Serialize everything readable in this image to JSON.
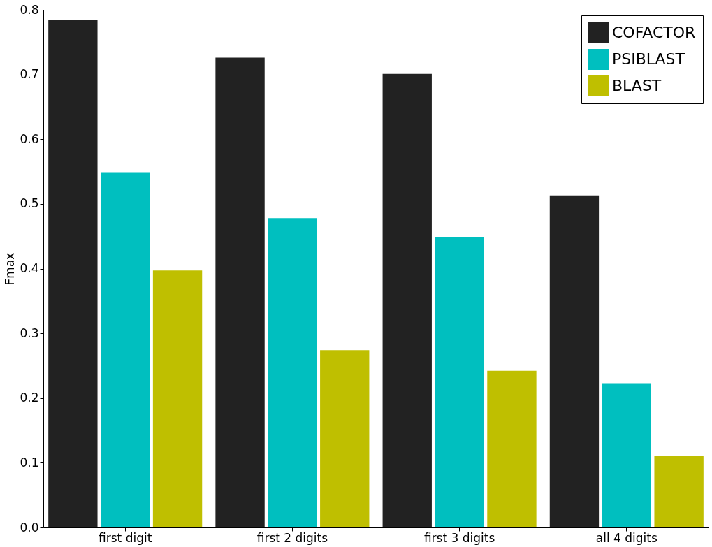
{
  "chart_data": {
    "type": "bar",
    "ylabel": "Fmax",
    "categories": [
      "first digit",
      "first 2 digits",
      "first 3 digits",
      "all 4 digits"
    ],
    "series": [
      {
        "name": "COFACTOR",
        "color": "#222222",
        "values": [
          0.784,
          0.726,
          0.701,
          0.513
        ]
      },
      {
        "name": "PSIBLAST",
        "color": "#00bfbf",
        "values": [
          0.549,
          0.478,
          0.449,
          0.223
        ]
      },
      {
        "name": "BLAST",
        "color": "#bfbf00",
        "values": [
          0.397,
          0.274,
          0.242,
          0.11
        ]
      }
    ],
    "ylim": [
      0.0,
      0.8
    ],
    "yticks": [
      {
        "value": 0,
        "label": "0.0"
      },
      {
        "value": 0.1,
        "label": "0.1"
      },
      {
        "value": 0.2,
        "label": "0.2"
      },
      {
        "value": 0.3,
        "label": "0.3"
      },
      {
        "value": 0.4,
        "label": "0.4"
      },
      {
        "value": 0.5,
        "label": "0.5"
      },
      {
        "value": 0.6,
        "label": "0.6"
      },
      {
        "value": 0.7,
        "label": "0.7"
      },
      {
        "value": 0.8,
        "label": "0.8"
      }
    ],
    "grid": false,
    "legend": "top right"
  }
}
